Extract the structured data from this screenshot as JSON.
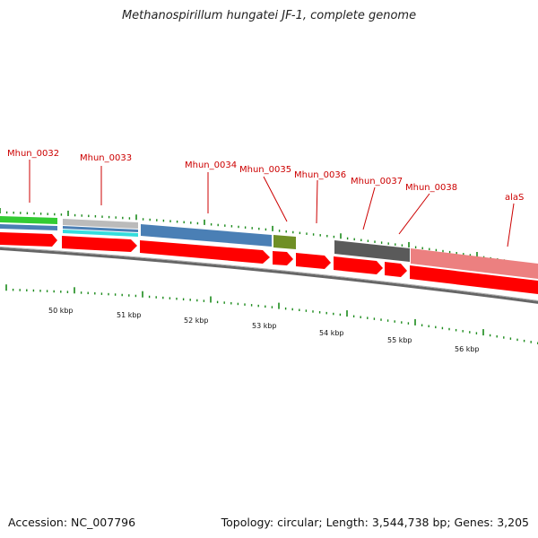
{
  "title": "Methanospirillum hungatei JF-1, complete genome",
  "footer": {
    "accession": "Accession: NC_007796",
    "summary": "Topology: circular; Length: 3,544,738 bp; Genes: 3,205"
  },
  "genes": [
    {
      "label": "Mhun_0032"
    },
    {
      "label": "Mhun_0033"
    },
    {
      "label": "Mhun_0034"
    },
    {
      "label": "Mhun_0035"
    },
    {
      "label": "Mhun_0036"
    },
    {
      "label": "Mhun_0037"
    },
    {
      "label": "Mhun_0038"
    },
    {
      "label": "alaS"
    }
  ],
  "scale": [
    "50 kbp",
    "51 kbp",
    "52 kbp",
    "53 kbp",
    "54 kbp",
    "55 kbp",
    "56 kbp"
  ],
  "colors": {
    "cds": "#ff0000",
    "label": "#cc0000",
    "tick": "#1a8a1a",
    "blue": "#4a7fb5",
    "olive": "#6f8f25",
    "dark_gray": "#5a5a5a",
    "pink": "#ec8080",
    "green": "#33cc33",
    "cyan": "#33dddd",
    "light_gray": "#bbbbbb"
  }
}
